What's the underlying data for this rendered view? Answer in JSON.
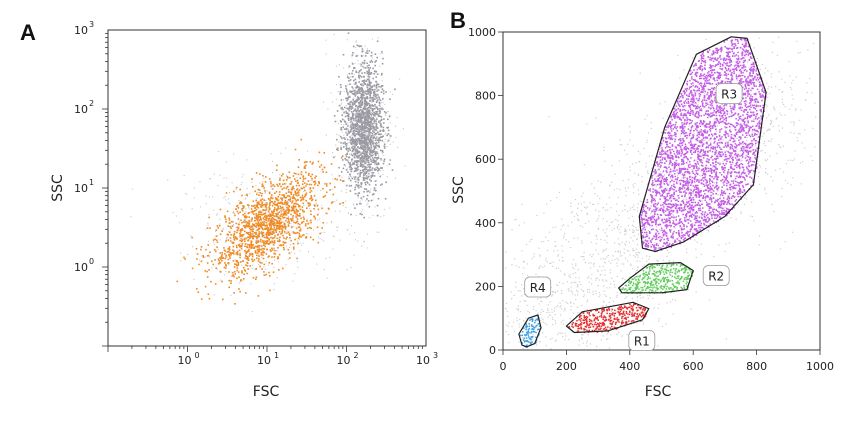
{
  "chart_data": [
    {
      "panel": "A",
      "type": "scatter",
      "xlabel": "FSC",
      "ylabel": "SSC",
      "xscale": "log",
      "yscale": "log",
      "xlim": [
        0.1,
        1000
      ],
      "ylim": [
        0.1,
        1000
      ],
      "xticks": [
        {
          "base": "10",
          "exp": "0",
          "value": 1
        },
        {
          "base": "10",
          "exp": "1",
          "value": 10
        },
        {
          "base": "10",
          "exp": "2",
          "value": 100
        },
        {
          "base": "10",
          "exp": "3",
          "value": 1000
        }
      ],
      "yticks": [
        {
          "base": "10",
          "exp": "0",
          "value": 1
        },
        {
          "base": "10",
          "exp": "1",
          "value": 10
        },
        {
          "base": "10",
          "exp": "2",
          "value": 100
        },
        {
          "base": "10",
          "exp": "3",
          "value": 1000
        }
      ],
      "grid": false,
      "series": [
        {
          "color": "#f08a24",
          "center": [
            10,
            3.5
          ],
          "spread_decades": [
            0.35,
            0.25
          ],
          "count": 1400
        },
        {
          "color": "#9b9aa2",
          "center": [
            160,
            60
          ],
          "spread_decades": [
            0.12,
            0.4
          ],
          "count": 1600
        }
      ]
    },
    {
      "panel": "B",
      "type": "scatter",
      "xlabel": "FSC",
      "ylabel": "SSC",
      "xlim": [
        0,
        1000
      ],
      "ylim": [
        0,
        1000
      ],
      "xticks": [
        "0",
        "200",
        "400",
        "600",
        "800",
        "1000"
      ],
      "yticks": [
        "0",
        "200",
        "400",
        "600",
        "800",
        "1000"
      ],
      "grid": false,
      "gates": [
        {
          "name": "R1",
          "color": "#e53030",
          "center": [
            340,
            95
          ],
          "polygon": [
            [
              200,
              75
            ],
            [
              225,
              55
            ],
            [
              330,
              60
            ],
            [
              440,
              95
            ],
            [
              460,
              130
            ],
            [
              410,
              150
            ],
            [
              250,
              120
            ]
          ]
        },
        {
          "name": "R2",
          "color": "#5fce59",
          "center": [
            480,
            225
          ],
          "polygon": [
            [
              365,
              195
            ],
            [
              400,
              225
            ],
            [
              460,
              270
            ],
            [
              560,
              275
            ],
            [
              600,
              250
            ],
            [
              580,
              190
            ],
            [
              500,
              180
            ],
            [
              375,
              180
            ]
          ]
        },
        {
          "name": "R3",
          "color": "#c45ce6",
          "center": [
            600,
            610
          ],
          "polygon": [
            [
              440,
              320
            ],
            [
              430,
              420
            ],
            [
              510,
              700
            ],
            [
              610,
              930
            ],
            [
              720,
              985
            ],
            [
              770,
              980
            ],
            [
              830,
              810
            ],
            [
              790,
              520
            ],
            [
              700,
              420
            ],
            [
              570,
              340
            ],
            [
              480,
              310
            ]
          ]
        },
        {
          "name": "R4",
          "color": "#3a9fe6",
          "center": [
            90,
            70
          ],
          "polygon": [
            [
              60,
              15
            ],
            [
              50,
              50
            ],
            [
              80,
              100
            ],
            [
              110,
              110
            ],
            [
              120,
              70
            ],
            [
              100,
              20
            ],
            [
              75,
              10
            ]
          ]
        }
      ]
    }
  ]
}
